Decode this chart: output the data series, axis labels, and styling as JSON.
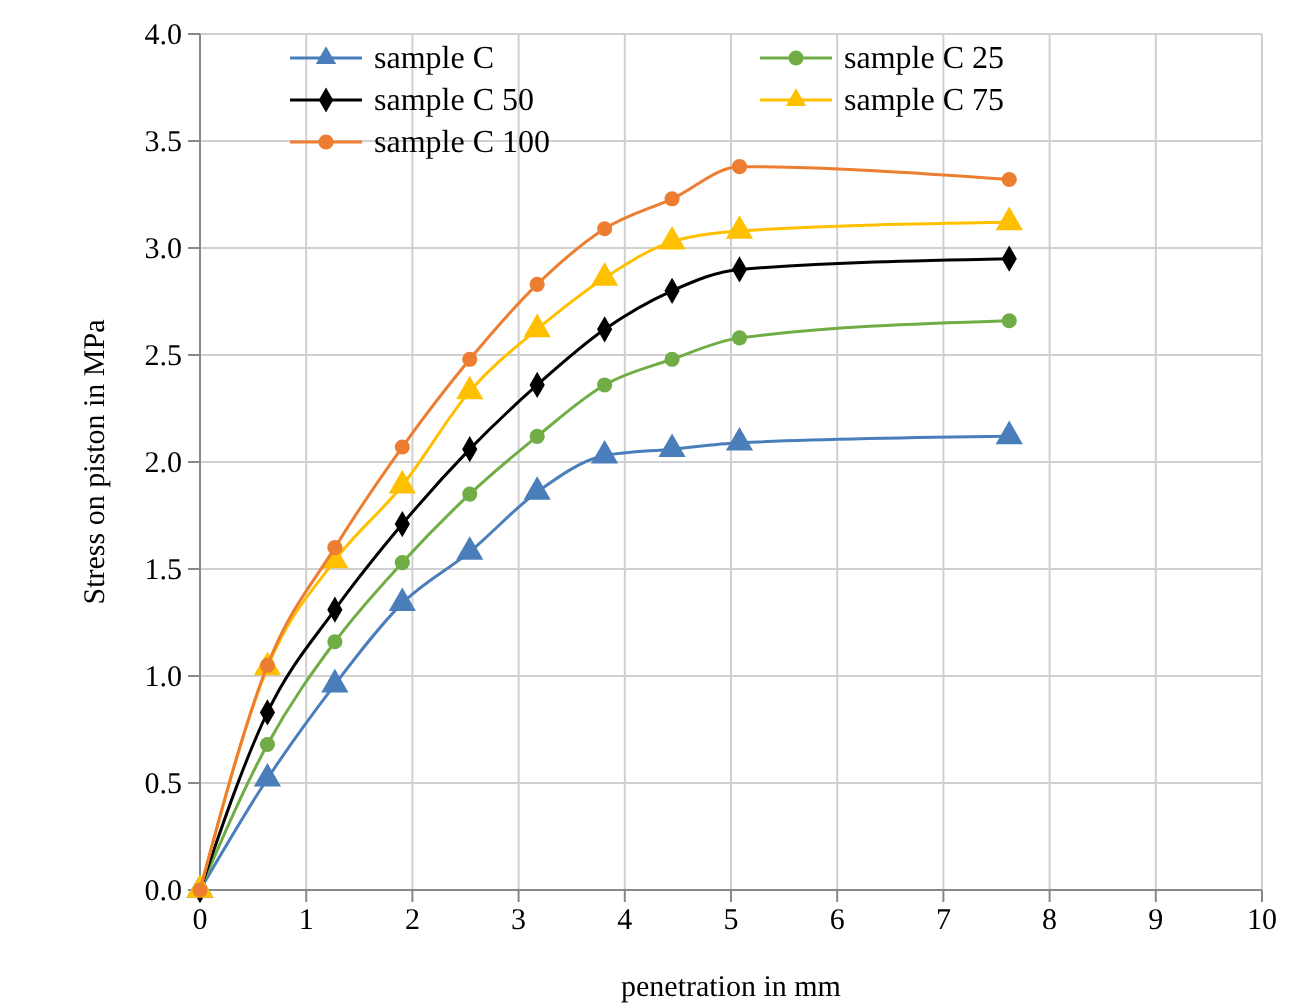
{
  "chart_data": {
    "type": "line",
    "xlabel": "penetration in mm",
    "ylabel": "Stress on piston in MPa",
    "x": [
      0,
      0.635,
      1.27,
      1.905,
      2.54,
      3.175,
      3.81,
      4.445,
      5.08,
      7.62
    ],
    "xlim": [
      0,
      10
    ],
    "xticks": [
      0,
      1,
      2,
      3,
      4,
      5,
      6,
      7,
      8,
      9,
      10
    ],
    "ylim": [
      0,
      4
    ],
    "yticks": [
      {
        "value": 0,
        "label": "0.0"
      },
      {
        "value": 0.5,
        "label": "0.5"
      },
      {
        "value": 1,
        "label": "1.0"
      },
      {
        "value": 1.5,
        "label": "1.5"
      },
      {
        "value": 2,
        "label": "2.0"
      },
      {
        "value": 2.5,
        "label": "2.5"
      },
      {
        "value": 3,
        "label": "3.0"
      },
      {
        "value": 3.5,
        "label": "3.5"
      },
      {
        "value": 4,
        "label": "4.0"
      }
    ],
    "grid": true,
    "legend": "top",
    "line_style": "solid",
    "series": [
      {
        "name": "sample C",
        "color": "#4a7ebb",
        "marker": "triangle",
        "values": [
          0,
          0.52,
          0.96,
          1.34,
          1.58,
          1.86,
          2.03,
          2.06,
          2.09,
          2.12
        ]
      },
      {
        "name": "sample C 25",
        "color": "#70ad47",
        "marker": "circle",
        "values": [
          0,
          0.68,
          1.16,
          1.53,
          1.85,
          2.12,
          2.36,
          2.48,
          2.58,
          2.66
        ]
      },
      {
        "name": "sample C 50",
        "color": "#000000",
        "marker": "diamond",
        "values": [
          0,
          0.83,
          1.31,
          1.71,
          2.06,
          2.36,
          2.62,
          2.8,
          2.9,
          2.95
        ]
      },
      {
        "name": "sample C 75",
        "color": "#ffc000",
        "marker": "triangle",
        "values": [
          0,
          1.04,
          1.54,
          1.89,
          2.33,
          2.62,
          2.86,
          3.03,
          3.08,
          3.12
        ]
      },
      {
        "name": "sample C 100",
        "color": "#ed7d31",
        "marker": "circle",
        "values": [
          0,
          1.05,
          1.6,
          2.07,
          2.48,
          2.83,
          3.09,
          3.23,
          3.38,
          3.32
        ]
      }
    ]
  }
}
